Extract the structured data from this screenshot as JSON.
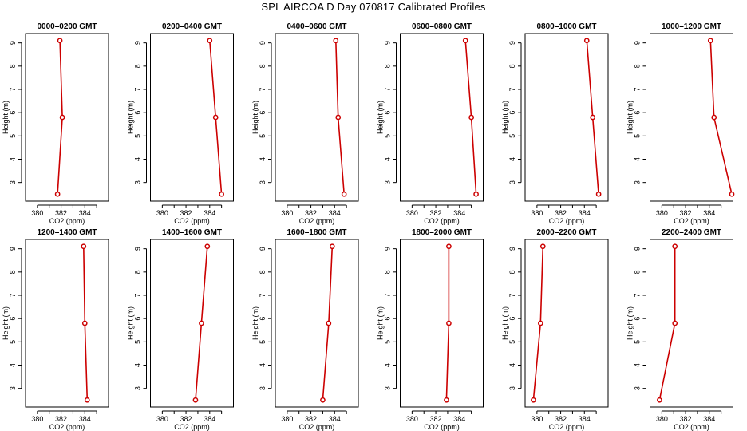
{
  "title": "SPL AIRCOA D  Day 070817  Calibrated Profiles",
  "chart_data": [
    {
      "type": "line",
      "title": "0000–0200 GMT",
      "xlabel": "CO2 (ppm)",
      "ylabel": "Height (m)",
      "xlim": [
        379,
        386
      ],
      "ylim": [
        2.2,
        9.4
      ],
      "xticks": [
        380,
        382,
        384
      ],
      "yticks": [
        3,
        4,
        5,
        6,
        7,
        8,
        9
      ],
      "grid": false,
      "series": [
        {
          "x": [
            381.7,
            382.1,
            381.9
          ],
          "y": [
            2.5,
            5.8,
            9.1
          ]
        }
      ]
    },
    {
      "type": "line",
      "title": "0200–0400 GMT",
      "xlabel": "CO2 (ppm)",
      "ylabel": "Height (m)",
      "xlim": [
        379,
        386
      ],
      "ylim": [
        2.2,
        9.4
      ],
      "xticks": [
        380,
        382,
        384
      ],
      "yticks": [
        3,
        4,
        5,
        6,
        7,
        8,
        9
      ],
      "grid": false,
      "series": [
        {
          "x": [
            385.0,
            384.5,
            384.0
          ],
          "y": [
            2.5,
            5.8,
            9.1
          ]
        }
      ]
    },
    {
      "type": "line",
      "title": "0400–0600 GMT",
      "xlabel": "CO2 (ppm)",
      "ylabel": "Height (m)",
      "xlim": [
        379,
        386
      ],
      "ylim": [
        2.2,
        9.4
      ],
      "xticks": [
        380,
        382,
        384
      ],
      "yticks": [
        3,
        4,
        5,
        6,
        7,
        8,
        9
      ],
      "grid": false,
      "series": [
        {
          "x": [
            384.8,
            384.3,
            384.1
          ],
          "y": [
            2.5,
            5.8,
            9.1
          ]
        }
      ]
    },
    {
      "type": "line",
      "title": "0600–0800 GMT",
      "xlabel": "CO2 (ppm)",
      "ylabel": "Height (m)",
      "xlim": [
        379,
        386
      ],
      "ylim": [
        2.2,
        9.4
      ],
      "xticks": [
        380,
        382,
        384
      ],
      "yticks": [
        3,
        4,
        5,
        6,
        7,
        8,
        9
      ],
      "grid": false,
      "series": [
        {
          "x": [
            385.4,
            385.0,
            384.5
          ],
          "y": [
            2.5,
            5.8,
            9.1
          ]
        }
      ]
    },
    {
      "type": "line",
      "title": "0800–1000 GMT",
      "xlabel": "CO2 (ppm)",
      "ylabel": "Height (m)",
      "xlim": [
        379,
        386
      ],
      "ylim": [
        2.2,
        9.4
      ],
      "xticks": [
        380,
        382,
        384
      ],
      "yticks": [
        3,
        4,
        5,
        6,
        7,
        8,
        9
      ],
      "grid": false,
      "series": [
        {
          "x": [
            385.2,
            384.7,
            384.2
          ],
          "y": [
            2.5,
            5.8,
            9.1
          ]
        }
      ]
    },
    {
      "type": "line",
      "title": "1000–1200 GMT",
      "xlabel": "CO2 (ppm)",
      "ylabel": "Height (m)",
      "xlim": [
        379,
        386
      ],
      "ylim": [
        2.2,
        9.4
      ],
      "xticks": [
        380,
        382,
        384
      ],
      "yticks": [
        3,
        4,
        5,
        6,
        7,
        8,
        9
      ],
      "grid": false,
      "series": [
        {
          "x": [
            385.9,
            384.4,
            384.1
          ],
          "y": [
            2.5,
            5.8,
            9.1
          ]
        }
      ]
    },
    {
      "type": "line",
      "title": "1200–1400 GMT",
      "xlabel": "CO2 (ppm)",
      "ylabel": "Height (m)",
      "xlim": [
        379,
        386
      ],
      "ylim": [
        2.2,
        9.4
      ],
      "xticks": [
        380,
        382,
        384
      ],
      "yticks": [
        3,
        4,
        5,
        6,
        7,
        8,
        9
      ],
      "grid": false,
      "series": [
        {
          "x": [
            384.2,
            384.0,
            383.9
          ],
          "y": [
            2.5,
            5.8,
            9.1
          ]
        }
      ]
    },
    {
      "type": "line",
      "title": "1400–1600 GMT",
      "xlabel": "CO2 (ppm)",
      "ylabel": "Height (m)",
      "xlim": [
        379,
        386
      ],
      "ylim": [
        2.2,
        9.4
      ],
      "xticks": [
        380,
        382,
        384
      ],
      "yticks": [
        3,
        4,
        5,
        6,
        7,
        8,
        9
      ],
      "grid": false,
      "series": [
        {
          "x": [
            382.8,
            383.3,
            383.8
          ],
          "y": [
            2.5,
            5.8,
            9.1
          ]
        }
      ]
    },
    {
      "type": "line",
      "title": "1600–1800 GMT",
      "xlabel": "CO2 (ppm)",
      "ylabel": "Height (m)",
      "xlim": [
        379,
        386
      ],
      "ylim": [
        2.2,
        9.4
      ],
      "xticks": [
        380,
        382,
        384
      ],
      "yticks": [
        3,
        4,
        5,
        6,
        7,
        8,
        9
      ],
      "grid": false,
      "series": [
        {
          "x": [
            383.0,
            383.5,
            383.8
          ],
          "y": [
            2.5,
            5.8,
            9.1
          ]
        }
      ]
    },
    {
      "type": "line",
      "title": "1800–2000 GMT",
      "xlabel": "CO2 (ppm)",
      "ylabel": "Height (m)",
      "xlim": [
        379,
        386
      ],
      "ylim": [
        2.2,
        9.4
      ],
      "xticks": [
        380,
        382,
        384
      ],
      "yticks": [
        3,
        4,
        5,
        6,
        7,
        8,
        9
      ],
      "grid": false,
      "series": [
        {
          "x": [
            382.9,
            383.1,
            383.1
          ],
          "y": [
            2.5,
            5.8,
            9.1
          ]
        }
      ]
    },
    {
      "type": "line",
      "title": "2000–2200 GMT",
      "xlabel": "CO2 (ppm)",
      "ylabel": "Height (m)",
      "xlim": [
        379,
        386
      ],
      "ylim": [
        2.2,
        9.4
      ],
      "xticks": [
        380,
        382,
        384
      ],
      "yticks": [
        3,
        4,
        5,
        6,
        7,
        8,
        9
      ],
      "grid": false,
      "series": [
        {
          "x": [
            379.7,
            380.3,
            380.5
          ],
          "y": [
            2.5,
            5.8,
            9.1
          ]
        }
      ]
    },
    {
      "type": "line",
      "title": "2200–2400 GMT",
      "xlabel": "CO2 (ppm)",
      "ylabel": "Height (m)",
      "xlim": [
        379,
        386
      ],
      "ylim": [
        2.2,
        9.4
      ],
      "xticks": [
        380,
        382,
        384
      ],
      "yticks": [
        3,
        4,
        5,
        6,
        7,
        8,
        9
      ],
      "grid": false,
      "series": [
        {
          "x": [
            379.8,
            381.1,
            381.1
          ],
          "y": [
            2.5,
            5.8,
            9.1
          ]
        }
      ]
    }
  ],
  "colors": {
    "series": "#cc0000",
    "axes": "#000000",
    "background": "#ffffff"
  }
}
